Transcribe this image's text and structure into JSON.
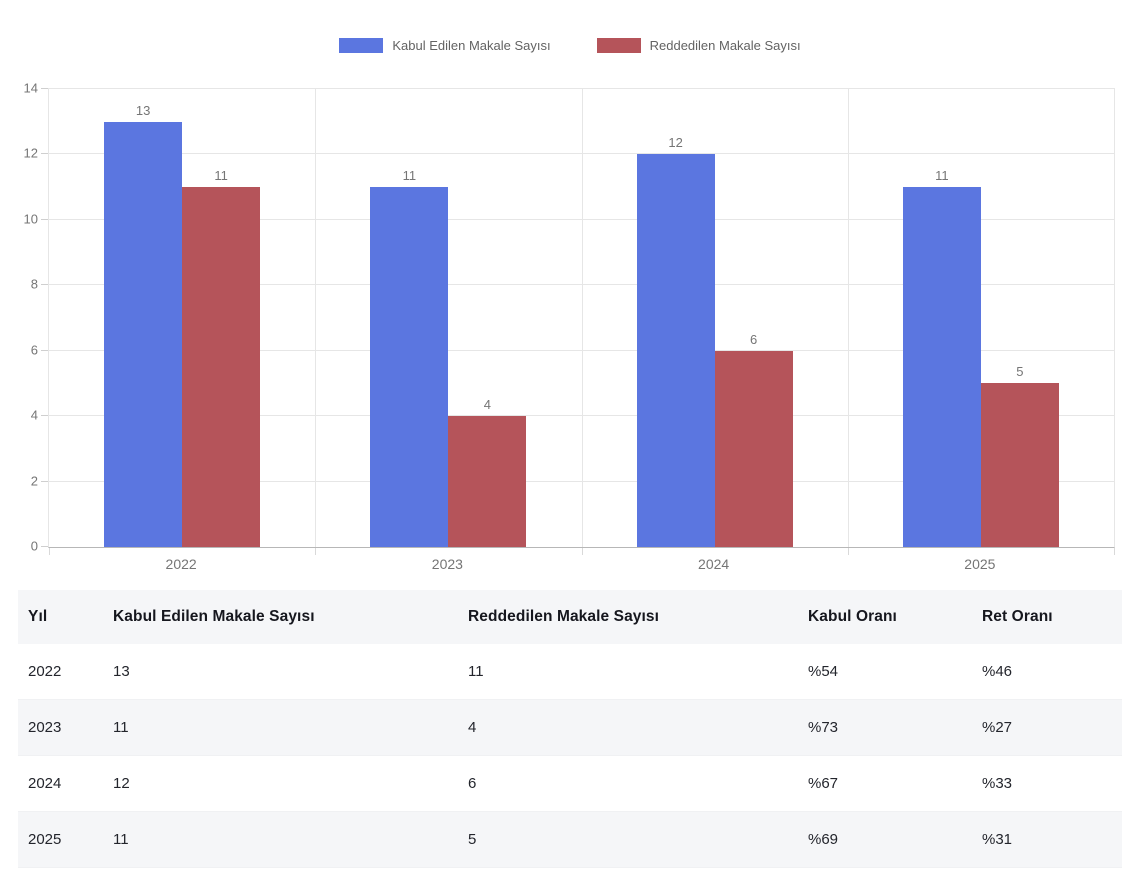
{
  "colors": {
    "accepted_bar": "#5b76e0",
    "rejected_bar": "#b5545a",
    "gridline": "#e6e6e6",
    "axis_line": "#b7b7b7",
    "axis_text": "#757575",
    "legend_text": "#636363",
    "table_alt_row_bg": "#f5f6f8"
  },
  "chart_data": {
    "type": "bar",
    "categories": [
      "2022",
      "2023",
      "2024",
      "2025"
    ],
    "series": [
      {
        "name": "Kabul Edilen Makale Sayısı",
        "color": "#5b76e0",
        "values": [
          13,
          11,
          12,
          11
        ]
      },
      {
        "name": "Reddedilen Makale Sayısı",
        "color": "#b5545a",
        "values": [
          11,
          4,
          6,
          5
        ]
      }
    ],
    "title": "",
    "xlabel": "",
    "ylabel": "",
    "ylim": [
      0,
      14
    ],
    "ytick_step": 2,
    "yticks": [
      0,
      2,
      4,
      6,
      8,
      10,
      12,
      14
    ],
    "grid": true,
    "legend_position": "top",
    "bar_value_labels": [
      [
        13,
        11,
        12,
        11
      ],
      [
        11,
        4,
        6,
        5
      ]
    ]
  },
  "table": {
    "headers": [
      "Yıl",
      "Kabul Edilen Makale Sayısı",
      "Reddedilen Makale Sayısı",
      "Kabul Oranı",
      "Ret Oranı"
    ],
    "rows": [
      [
        "2022",
        "13",
        "11",
        "%54",
        "%46"
      ],
      [
        "2023",
        "11",
        "4",
        "%73",
        "%27"
      ],
      [
        "2024",
        "12",
        "6",
        "%67",
        "%33"
      ],
      [
        "2025",
        "11",
        "5",
        "%69",
        "%31"
      ]
    ]
  }
}
